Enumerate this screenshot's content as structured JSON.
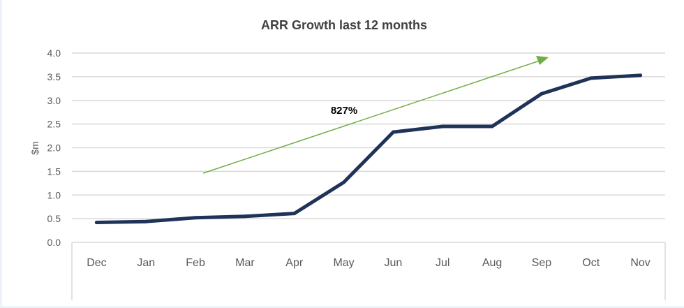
{
  "chart_data": {
    "type": "line",
    "title": "ARR Growth last 12 months",
    "xlabel": "",
    "ylabel": "$m",
    "categories": [
      "Dec",
      "Jan",
      "Feb",
      "Mar",
      "Apr",
      "May",
      "Jun",
      "Jul",
      "Aug",
      "Sep",
      "Oct",
      "Nov"
    ],
    "series": [
      {
        "name": "ARR",
        "values": [
          0.42,
          0.44,
          0.52,
          0.55,
          0.61,
          1.27,
          2.33,
          2.45,
          2.45,
          3.14,
          3.47,
          3.53
        ],
        "color": "#1f3359"
      }
    ],
    "ylim": [
      0,
      4.0
    ],
    "yticks": [
      "0.0",
      "0.5",
      "1.0",
      "1.5",
      "2.0",
      "2.5",
      "3.0",
      "3.5",
      "4.0"
    ],
    "grid": true,
    "annotations": [
      {
        "text": "827%",
        "type": "trend-arrow",
        "color": "#70ad47"
      }
    ]
  }
}
